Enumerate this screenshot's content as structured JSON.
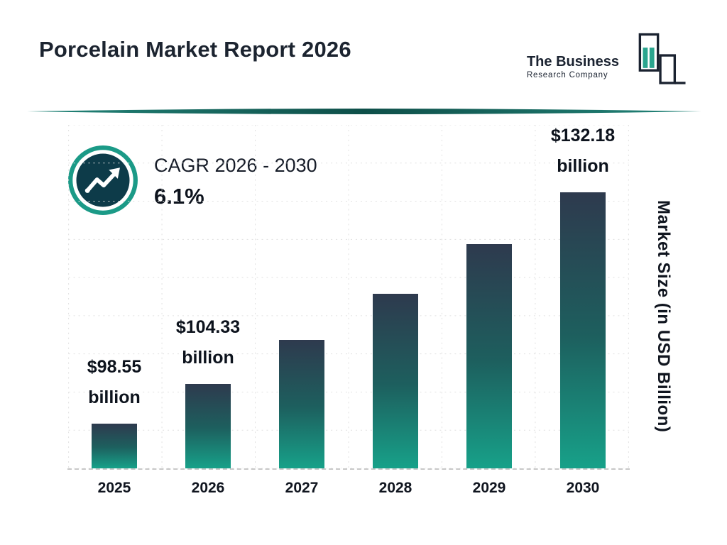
{
  "header": {
    "title": "Porcelain Market Report 2026",
    "logo": {
      "line1": "The Business",
      "line2": "Research Company"
    }
  },
  "cagr": {
    "label": "CAGR 2026 - 2030",
    "value": "6.1%"
  },
  "colors": {
    "teal": "#1b9a87",
    "dark": "#1a2230",
    "bar_top": "#2e3a4e",
    "bar_bottom": "#17a189"
  },
  "chart_data": {
    "type": "bar",
    "title": "Porcelain Market Report 2026",
    "categories": [
      "2025",
      "2026",
      "2027",
      "2028",
      "2029",
      "2030"
    ],
    "values": [
      98.55,
      104.33,
      110.69,
      117.44,
      124.6,
      132.18
    ],
    "value_labels": [
      "$98.55 billion",
      "$104.33 billion",
      "",
      "",
      "",
      "$132.18 billion"
    ],
    "xlabel": "",
    "ylabel": "Market Size (in USD Billion)",
    "ylim": [
      92,
      142
    ],
    "grid": true,
    "legend": "none"
  }
}
